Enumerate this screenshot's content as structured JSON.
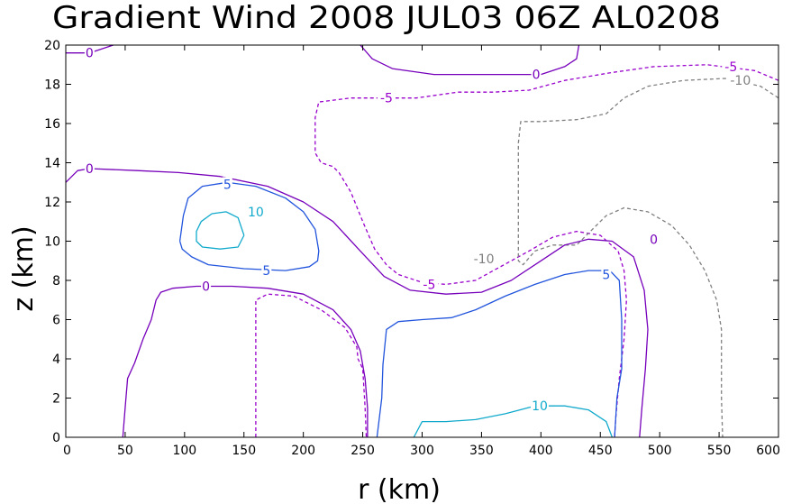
{
  "chart_data": {
    "type": "contour",
    "title": "Gradient Wind 2008 JUL03 06Z  AL0208",
    "xlabel": "r (km)",
    "ylabel": "z (km)",
    "xlim": [
      0,
      600
    ],
    "ylim": [
      0,
      20
    ],
    "xticks": [
      0,
      50,
      100,
      150,
      200,
      250,
      300,
      350,
      400,
      450,
      500,
      550,
      600
    ],
    "yticks": [
      0,
      2,
      4,
      6,
      8,
      10,
      12,
      14,
      16,
      18,
      20
    ],
    "x_tick_labels": [
      "0",
      "50",
      "100",
      "150",
      "200",
      "250",
      "300",
      "350",
      "400",
      "450",
      "500",
      "550",
      "600"
    ],
    "y_tick_labels": [
      "0",
      "2",
      "4",
      "6",
      "8",
      "10",
      "12",
      "14",
      "16",
      "18",
      "20"
    ],
    "grid": false,
    "contours": [
      {
        "level": -5,
        "label": "-5",
        "color": "#9900cc",
        "dashed": true,
        "labels_at": [
          [
            270,
            17.3
          ],
          [
            306,
            7.8
          ],
          [
            560,
            18.9
          ]
        ],
        "paths": [
          [
            [
              160,
              0
            ],
            [
              160,
              7
            ],
            [
              170,
              7.3
            ],
            [
              192,
              7.2
            ],
            [
              215,
              6.5
            ],
            [
              235,
              5.6
            ],
            [
              245,
              4.6
            ],
            [
              246,
              4
            ],
            [
              250,
              3.5
            ],
            [
              252,
              1.5
            ],
            [
              253,
              0
            ]
          ],
          [
            [
              600,
              18.2
            ],
            [
              580,
              18.7
            ],
            [
              540,
              19
            ],
            [
              495,
              18.9
            ],
            [
              460,
              18.6
            ],
            [
              420,
              18.2
            ],
            [
              390,
              17.7
            ],
            [
              360,
              17.6
            ],
            [
              330,
              17.6
            ],
            [
              295,
              17.3
            ],
            [
              260,
              17.3
            ],
            [
              240,
              17.3
            ],
            [
              213,
              17.1
            ],
            [
              210,
              16.3
            ],
            [
              210,
              14.5
            ],
            [
              215,
              14
            ],
            [
              225,
              13.8
            ],
            [
              230,
              13.5
            ],
            [
              240,
              12.5
            ],
            [
              250,
              11
            ],
            [
              260,
              9.6
            ],
            [
              270,
              8.8
            ],
            [
              280,
              8.3
            ],
            [
              300,
              7.9
            ],
            [
              320,
              7.8
            ],
            [
              345,
              8
            ],
            [
              360,
              8.5
            ],
            [
              375,
              9
            ],
            [
              390,
              9.5
            ],
            [
              410,
              10.2
            ],
            [
              430,
              10.5
            ],
            [
              450,
              10.3
            ],
            [
              465,
              9.5
            ],
            [
              470,
              8.5
            ],
            [
              472,
              7
            ],
            [
              470,
              5
            ],
            [
              466,
              3
            ],
            [
              463,
              1
            ],
            [
              462,
              0
            ]
          ]
        ]
      },
      {
        "level": -10,
        "label": "-10",
        "color": "#808080",
        "dashed": true,
        "labels_at": [
          [
            352,
            9.1
          ],
          [
            568,
            18.2
          ]
        ],
        "paths": [
          [
            [
              600,
              17.3
            ],
            [
              585,
              17.9
            ],
            [
              555,
              18.3
            ],
            [
              520,
              18.2
            ],
            [
              490,
              17.9
            ],
            [
              470,
              17.3
            ],
            [
              455,
              16.5
            ],
            [
              430,
              16.2
            ],
            [
              400,
              16.1
            ],
            [
              383,
              16.1
            ],
            [
              381,
              15
            ],
            [
              381,
              9
            ],
            [
              385,
              8.8
            ],
            [
              395,
              9.5
            ],
            [
              410,
              9.8
            ],
            [
              430,
              9.8
            ],
            [
              455,
              11.3
            ],
            [
              470,
              11.7
            ],
            [
              490,
              11.5
            ],
            [
              510,
              10.8
            ],
            [
              525,
              9.8
            ],
            [
              538,
              8.5
            ],
            [
              548,
              7
            ],
            [
              552,
              5.5
            ],
            [
              552,
              4
            ],
            [
              552,
              2
            ],
            [
              553,
              0
            ]
          ]
        ]
      },
      {
        "level": 0,
        "label": "0",
        "color": "#7700bb",
        "dashed": false,
        "labels_at": [
          [
            20,
            19.6
          ],
          [
            20,
            13.7
          ],
          [
            396,
            18.5
          ],
          [
            118,
            7.7
          ],
          [
            495,
            10.1
          ]
        ],
        "paths": [
          [
            [
              0,
              19.6
            ],
            [
              20,
              19.6
            ],
            [
              40,
              20
            ]
          ],
          [
            [
              0,
              13
            ],
            [
              10,
              13.6
            ],
            [
              20,
              13.7
            ],
            [
              60,
              13.6
            ],
            [
              95,
              13.5
            ],
            [
              130,
              13.3
            ],
            [
              170,
              12.8
            ],
            [
              200,
              12
            ],
            [
              225,
              11
            ],
            [
              248,
              9.5
            ],
            [
              268,
              8.2
            ],
            [
              290,
              7.5
            ],
            [
              320,
              7.3
            ],
            [
              350,
              7.4
            ],
            [
              375,
              8
            ],
            [
              400,
              9
            ],
            [
              420,
              9.8
            ],
            [
              440,
              10.1
            ],
            [
              460,
              10
            ],
            [
              478,
              9.2
            ],
            [
              487,
              7.5
            ],
            [
              490,
              5.5
            ],
            [
              488,
              3.5
            ],
            [
              485,
              1.5
            ],
            [
              483,
              0
            ]
          ],
          [
            [
              248,
              20
            ],
            [
              258,
              19.3
            ],
            [
              275,
              18.8
            ],
            [
              310,
              18.5
            ],
            [
              360,
              18.5
            ],
            [
              400,
              18.5
            ],
            [
              420,
              18.9
            ],
            [
              430,
              19.3
            ],
            [
              432,
              20
            ]
          ],
          [
            [
              48,
              0
            ],
            [
              50,
              1.5
            ],
            [
              52,
              3
            ],
            [
              58,
              3.8
            ],
            [
              65,
              5
            ],
            [
              72,
              6
            ],
            [
              76,
              7
            ],
            [
              80,
              7.4
            ],
            [
              90,
              7.6
            ],
            [
              110,
              7.7
            ],
            [
              140,
              7.7
            ],
            [
              170,
              7.6
            ],
            [
              200,
              7.3
            ],
            [
              225,
              6.5
            ],
            [
              240,
              5.5
            ],
            [
              248,
              4.4
            ],
            [
              252,
              3
            ],
            [
              254,
              1.5
            ],
            [
              254,
              0
            ]
          ]
        ]
      },
      {
        "level": 5,
        "label": "5",
        "color": "#2255dd",
        "dashed": false,
        "labels_at": [
          [
            136,
            12.9
          ],
          [
            169,
            8.5
          ],
          [
            455,
            8.3
          ]
        ],
        "paths": [
          [
            [
              96,
              10
            ],
            [
              99,
              11.3
            ],
            [
              103,
              12.2
            ],
            [
              115,
              12.8
            ],
            [
              136,
              13
            ],
            [
              160,
              12.8
            ],
            [
              185,
              12.2
            ],
            [
              200,
              11.5
            ],
            [
              210,
              10.6
            ],
            [
              213,
              9.5
            ],
            [
              212,
              9
            ],
            [
              205,
              8.7
            ],
            [
              185,
              8.5
            ],
            [
              150,
              8.6
            ],
            [
              120,
              8.8
            ],
            [
              106,
              9.2
            ],
            [
              98,
              9.6
            ],
            [
              96,
              10
            ]
          ],
          [
            [
              262,
              0
            ],
            [
              266,
              2
            ],
            [
              267,
              3.7
            ],
            [
              270,
              5.5
            ],
            [
              280,
              5.9
            ],
            [
              300,
              6
            ],
            [
              325,
              6.1
            ],
            [
              345,
              6.5
            ],
            [
              370,
              7.2
            ],
            [
              395,
              7.8
            ],
            [
              420,
              8.3
            ],
            [
              440,
              8.5
            ],
            [
              458,
              8.5
            ],
            [
              466,
              8
            ],
            [
              468,
              6
            ],
            [
              468,
              3.5
            ],
            [
              464,
              2
            ],
            [
              462,
              0
            ]
          ]
        ]
      },
      {
        "level": 10,
        "label": "10",
        "color": "#11aacc",
        "dashed": false,
        "labels_at": [
          [
            160,
            11.5
          ],
          [
            399,
            1.6
          ]
        ],
        "paths": [
          [
            [
              150,
              10.3
            ],
            [
              145,
              11.2
            ],
            [
              135,
              11.5
            ],
            [
              123,
              11.4
            ],
            [
              114,
              11
            ],
            [
              110,
              10.5
            ],
            [
              110,
              10
            ],
            [
              115,
              9.7
            ],
            [
              130,
              9.6
            ],
            [
              145,
              9.7
            ],
            [
              150,
              10.3
            ]
          ],
          [
            [
              293,
              0
            ],
            [
              300,
              0.8
            ],
            [
              320,
              0.8
            ],
            [
              345,
              0.9
            ],
            [
              370,
              1.2
            ],
            [
              395,
              1.6
            ],
            [
              420,
              1.6
            ],
            [
              440,
              1.4
            ],
            [
              455,
              0.8
            ],
            [
              460,
              0
            ]
          ]
        ]
      }
    ]
  }
}
